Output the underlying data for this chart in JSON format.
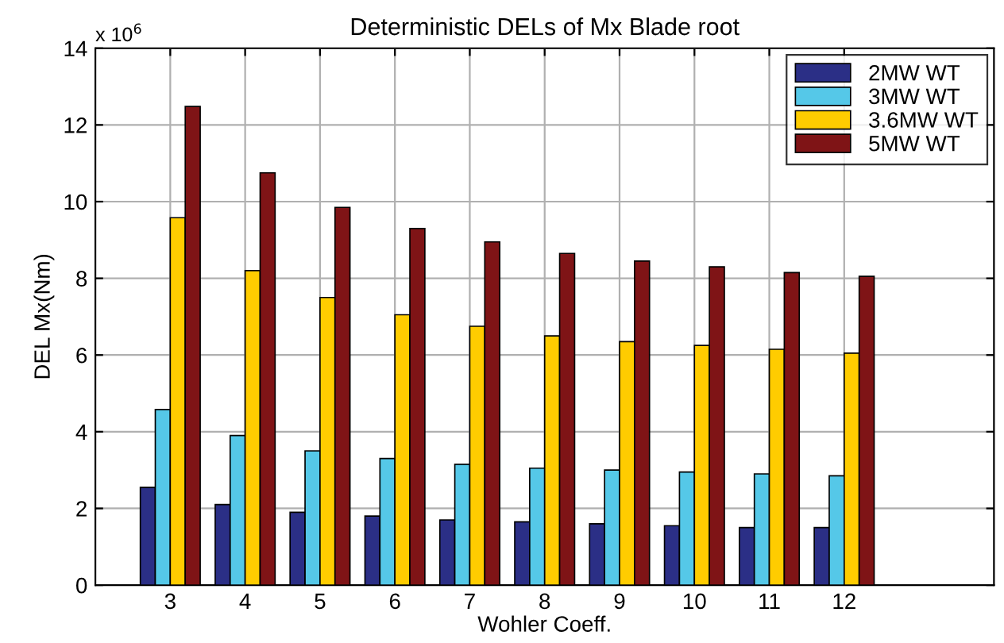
{
  "chart_data": {
    "type": "bar",
    "title": "Deterministic DELs of Mx Blade root",
    "xlabel": "Wohler Coeff.",
    "ylabel": "DEL Mx(Nm)",
    "annotations": [
      "x 10$^{6}$"
    ],
    "x": [
      3,
      4,
      5,
      6,
      7,
      8,
      9,
      10,
      11,
      12
    ],
    "series": [
      {
        "name": "2MW WT",
        "color": "#2b2f86",
        "values": [
          2.55,
          2.1,
          1.9,
          1.8,
          1.7,
          1.65,
          1.6,
          1.55,
          1.5,
          1.5
        ]
      },
      {
        "name": "3MW WT",
        "color": "#55c8e8",
        "values": [
          4.58,
          3.9,
          3.5,
          3.3,
          3.15,
          3.05,
          3.0,
          2.95,
          2.9,
          2.85
        ]
      },
      {
        "name": "3.6MW WT",
        "color": "#ffcc00",
        "values": [
          9.58,
          8.2,
          7.5,
          7.05,
          6.75,
          6.5,
          6.35,
          6.25,
          6.15,
          6.05
        ]
      },
      {
        "name": "5MW WT",
        "color": "#7f1416",
        "values": [
          12.48,
          10.75,
          9.85,
          9.3,
          8.95,
          8.65,
          8.45,
          8.3,
          8.15,
          8.05
        ]
      }
    ],
    "xlim": [
      2,
      14
    ],
    "xticks": [
      3,
      4,
      5,
      6,
      7,
      8,
      9,
      10,
      11,
      12
    ],
    "ylim": [
      0,
      14
    ],
    "yticks": [
      0,
      2,
      4,
      6,
      8,
      10,
      12,
      14
    ],
    "grid": true,
    "legend": "top right"
  }
}
